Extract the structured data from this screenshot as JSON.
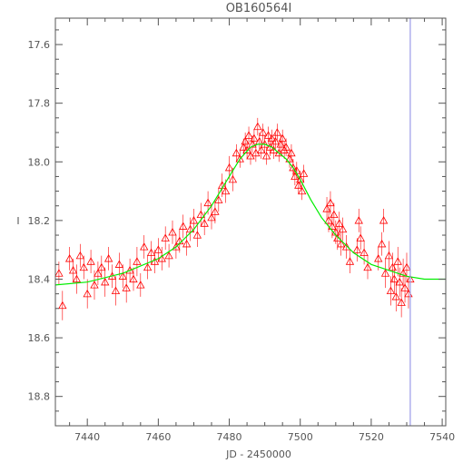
{
  "chart_data": {
    "type": "scatter",
    "title": "OB160564I",
    "xlabel": "JD - 2450000",
    "ylabel": "I",
    "xlim": [
      7431,
      7541
    ],
    "ylim": [
      18.9,
      17.51
    ],
    "y_inverted": true,
    "xticks": [
      7440,
      7460,
      7480,
      7500,
      7520,
      7540
    ],
    "yticks": [
      17.6,
      17.8,
      18.0,
      18.2,
      18.4,
      18.6,
      18.8
    ],
    "ytick_labels": [
      "17.6",
      "17.8",
      "18.0",
      "18.2",
      "18.4",
      "18.6",
      "18.8"
    ],
    "grid": false,
    "colors": {
      "points": "#ff0000",
      "fit": "#00ee00",
      "marker_line": "#9a9ae8",
      "axes": "#555555"
    },
    "series": [
      {
        "kind": "points_with_errorbars",
        "x": [
          7432,
          7433,
          7435,
          7436,
          7437,
          7438,
          7439,
          7440,
          7441,
          7442,
          7443,
          7444,
          7445,
          7446,
          7447,
          7448,
          7449,
          7450,
          7451,
          7452,
          7453,
          7454,
          7455,
          7456,
          7457,
          7458,
          7459,
          7460,
          7461,
          7462,
          7463,
          7464,
          7465,
          7466,
          7467,
          7468,
          7469,
          7470,
          7471,
          7472,
          7473,
          7474,
          7475,
          7476,
          7477,
          7478,
          7479,
          7480,
          7481,
          7482,
          7483,
          7484,
          7484.5,
          7485,
          7485.5,
          7486,
          7486.5,
          7487,
          7487.5,
          7488,
          7488.5,
          7489,
          7489.5,
          7490,
          7490.5,
          7491,
          7491.5,
          7492,
          7492.5,
          7493,
          7493.5,
          7494,
          7494.5,
          7495,
          7495.5,
          7496,
          7497,
          7497.5,
          7498,
          7498.5,
          7499,
          7499.5,
          7500,
          7500.5,
          7501,
          7507.5,
          7508,
          7508.5,
          7509,
          7509.5,
          7510,
          7510.5,
          7511,
          7511.5,
          7512,
          7513,
          7514,
          7516,
          7516.5,
          7517,
          7518,
          7519,
          7522,
          7523,
          7523.5,
          7524,
          7525,
          7525.5,
          7526,
          7526.5,
          7527,
          7527.5,
          7528,
          7528.5,
          7529,
          7529.5,
          7530,
          7530.5,
          7531
        ],
        "y": [
          18.38,
          18.49,
          18.33,
          18.37,
          18.4,
          18.32,
          18.36,
          18.45,
          18.34,
          18.42,
          18.38,
          18.36,
          18.41,
          18.33,
          18.39,
          18.44,
          18.35,
          18.39,
          18.43,
          18.37,
          18.4,
          18.34,
          18.42,
          18.29,
          18.36,
          18.31,
          18.34,
          18.3,
          18.33,
          18.26,
          18.32,
          18.24,
          18.29,
          18.27,
          18.22,
          18.28,
          18.23,
          18.2,
          18.25,
          18.18,
          18.21,
          18.14,
          18.19,
          18.17,
          18.13,
          18.08,
          18.1,
          18.02,
          18.06,
          17.97,
          17.99,
          17.95,
          17.93,
          17.96,
          17.91,
          17.98,
          17.94,
          17.92,
          17.97,
          17.88,
          17.93,
          17.96,
          17.9,
          17.94,
          17.98,
          17.91,
          17.95,
          17.92,
          17.96,
          17.93,
          17.9,
          17.97,
          17.94,
          17.92,
          17.96,
          17.95,
          17.99,
          17.97,
          18.02,
          18.05,
          18.03,
          18.08,
          18.06,
          18.1,
          18.04,
          18.16,
          18.2,
          18.14,
          18.22,
          18.18,
          18.24,
          18.26,
          18.21,
          18.28,
          18.23,
          18.29,
          18.34,
          18.3,
          18.2,
          18.26,
          18.31,
          18.36,
          18.33,
          18.28,
          18.2,
          18.38,
          18.32,
          18.44,
          18.36,
          18.4,
          18.46,
          18.34,
          18.41,
          18.48,
          18.38,
          18.43,
          18.36,
          18.45,
          18.4
        ],
        "err": [
          0.04,
          0.05,
          0.04,
          0.04,
          0.05,
          0.04,
          0.04,
          0.05,
          0.04,
          0.05,
          0.04,
          0.04,
          0.05,
          0.04,
          0.04,
          0.05,
          0.04,
          0.04,
          0.05,
          0.04,
          0.04,
          0.05,
          0.04,
          0.04,
          0.04,
          0.04,
          0.04,
          0.04,
          0.04,
          0.04,
          0.04,
          0.04,
          0.04,
          0.04,
          0.04,
          0.04,
          0.04,
          0.04,
          0.04,
          0.04,
          0.04,
          0.04,
          0.04,
          0.04,
          0.04,
          0.04,
          0.04,
          0.04,
          0.04,
          0.03,
          0.03,
          0.03,
          0.03,
          0.03,
          0.03,
          0.03,
          0.03,
          0.03,
          0.03,
          0.03,
          0.03,
          0.03,
          0.03,
          0.03,
          0.03,
          0.03,
          0.03,
          0.03,
          0.03,
          0.03,
          0.03,
          0.03,
          0.03,
          0.03,
          0.03,
          0.03,
          0.03,
          0.03,
          0.03,
          0.03,
          0.03,
          0.03,
          0.03,
          0.03,
          0.03,
          0.04,
          0.04,
          0.04,
          0.04,
          0.04,
          0.04,
          0.04,
          0.04,
          0.04,
          0.04,
          0.04,
          0.04,
          0.04,
          0.04,
          0.04,
          0.04,
          0.04,
          0.04,
          0.04,
          0.04,
          0.05,
          0.05,
          0.05,
          0.05,
          0.05,
          0.05,
          0.05,
          0.05,
          0.05,
          0.05,
          0.05,
          0.05,
          0.05,
          0.05
        ]
      },
      {
        "kind": "model_curve",
        "x": [
          7431,
          7440,
          7450,
          7460,
          7465,
          7470,
          7475,
          7480,
          7483,
          7486,
          7488,
          7490,
          7492,
          7494,
          7496,
          7498,
          7500,
          7503,
          7506,
          7510,
          7515,
          7520,
          7525,
          7530,
          7535,
          7541
        ],
        "y": [
          18.42,
          18.41,
          18.38,
          18.33,
          18.29,
          18.23,
          18.15,
          18.05,
          17.99,
          17.95,
          17.94,
          17.94,
          17.95,
          17.97,
          17.99,
          18.02,
          18.06,
          18.13,
          18.19,
          18.25,
          18.31,
          18.35,
          18.37,
          18.39,
          18.4,
          18.4
        ]
      }
    ],
    "reference_lines": [
      {
        "orientation": "vertical",
        "x": 7531
      }
    ]
  }
}
